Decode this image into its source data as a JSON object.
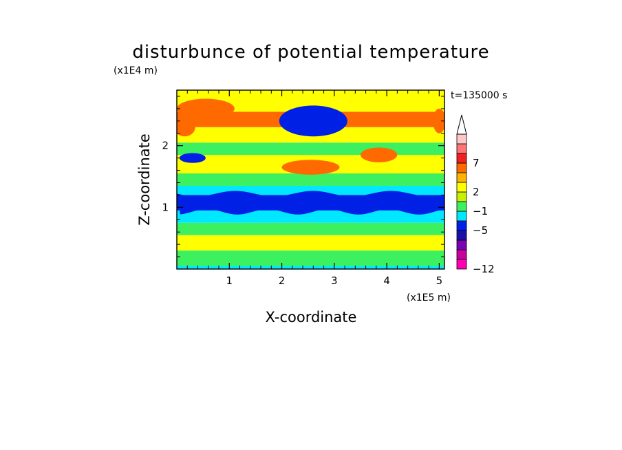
{
  "chart_data": {
    "type": "heatmap",
    "title": "disturbunce of potential temperature",
    "xlabel": "X-coordinate",
    "ylabel": "Z-coordinate",
    "x_unit": "(x1E5 m)",
    "y_unit": "(x1E4 m)",
    "time_label": "t=135000 s",
    "xlim": [
      0,
      5.1
    ],
    "ylim": [
      0,
      2.9
    ],
    "x_ticks": [
      "1",
      "2",
      "3",
      "4",
      "5"
    ],
    "y_ticks": [
      "1",
      "2"
    ],
    "grid": false,
    "colorbar": {
      "placement": "right",
      "tick_labels": [
        "7",
        "2",
        "−1",
        "−5",
        "−12"
      ],
      "colors": [
        "#ff00b4",
        "#c8009c",
        "#7a00b8",
        "#1a10a8",
        "#0020e6",
        "#00e8ff",
        "#3cf060",
        "#c8f000",
        "#ffff00",
        "#ffb400",
        "#ff6a00",
        "#f02020",
        "#ff7474",
        "#ffc8c8"
      ],
      "extend_top": true
    },
    "bands": [
      {
        "z": [
          0.0,
          0.05
        ],
        "level": "cyan"
      },
      {
        "z": [
          0.05,
          0.3
        ],
        "level": "green"
      },
      {
        "z": [
          0.3,
          0.55
        ],
        "level": "yellow"
      },
      {
        "z": [
          0.55,
          0.75
        ],
        "level": "green"
      },
      {
        "z": [
          0.75,
          0.95
        ],
        "level": "cyan"
      },
      {
        "z": [
          0.95,
          1.2
        ],
        "level": "blue"
      },
      {
        "z": [
          1.2,
          1.35
        ],
        "level": "cyan"
      },
      {
        "z": [
          1.35,
          1.55
        ],
        "level": "green"
      },
      {
        "z": [
          1.55,
          1.85
        ],
        "level": "yellow"
      },
      {
        "z": [
          1.85,
          2.05
        ],
        "level": "green"
      },
      {
        "z": [
          2.05,
          2.3
        ],
        "level": "yellow"
      },
      {
        "z": [
          2.3,
          2.55
        ],
        "level": "orange"
      },
      {
        "z": [
          2.55,
          2.9
        ],
        "level": "yellow"
      }
    ],
    "features": [
      {
        "kind": "minimum",
        "x": 2.7,
        "z": 2.45,
        "rx": 0.45,
        "rz": 0.14,
        "level": "darkblue"
      },
      {
        "kind": "minimum",
        "x": 2.6,
        "z": 2.4,
        "rx": 0.65,
        "rz": 0.25,
        "level": "blue"
      },
      {
        "kind": "minimum",
        "x": 0.3,
        "z": 1.8,
        "rx": 0.25,
        "rz": 0.08,
        "level": "blue"
      },
      {
        "kind": "maximum",
        "x": 0.55,
        "z": 2.6,
        "rx": 0.55,
        "rz": 0.16,
        "level": "orange"
      },
      {
        "kind": "maximum",
        "x": 3.85,
        "z": 1.85,
        "rx": 0.35,
        "rz": 0.12,
        "level": "orange"
      },
      {
        "kind": "maximum",
        "x": 2.55,
        "z": 1.65,
        "rx": 0.55,
        "rz": 0.12,
        "level": "orange"
      },
      {
        "kind": "maximum",
        "x": 0.15,
        "z": 2.3,
        "rx": 0.2,
        "rz": 0.15,
        "level": "orange"
      },
      {
        "kind": "maximum",
        "x": 5.0,
        "z": 2.4,
        "rx": 0.12,
        "rz": 0.2,
        "level": "orange"
      }
    ]
  }
}
